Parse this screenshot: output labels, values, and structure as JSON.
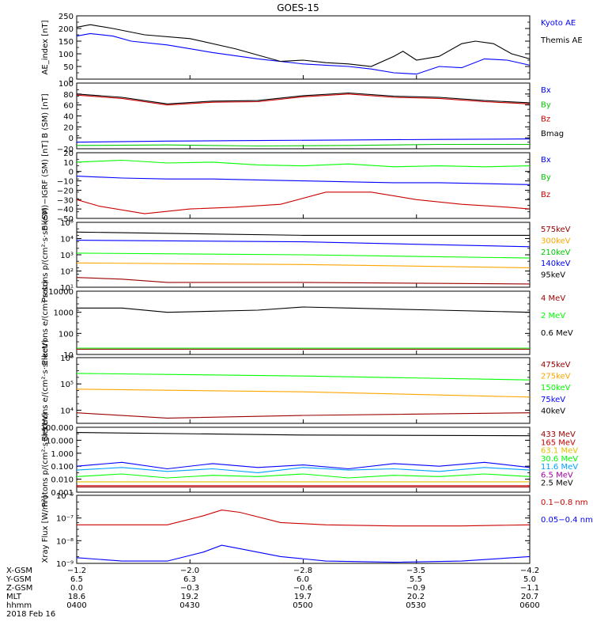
{
  "title": "GOES-15",
  "colors": {
    "black": "#000000",
    "blue": "#0000ff",
    "green": "#00cc00",
    "red": "#cc0000",
    "orange": "#ffa500",
    "cyan": "#00a0ff",
    "darkred": "#990000",
    "gold": "#e0c000",
    "purple": "#a000a0",
    "brightgreen": "#00ff00"
  },
  "chart_data": [
    {
      "type": "line",
      "ylabel": "AE_index [nT]",
      "ylim": [
        0,
        250
      ],
      "yscale": "linear",
      "yticks": [
        "250",
        "200",
        "150",
        "100",
        "50",
        "0"
      ],
      "ytick_values": [
        250,
        200,
        150,
        100,
        50,
        0
      ],
      "legend": [
        {
          "label": "Kyoto AE",
          "color": "blue"
        },
        {
          "label": "Themis AE",
          "color": "black"
        }
      ],
      "series": [
        {
          "name": "Kyoto AE",
          "color": "blue",
          "x": [
            0,
            0.03,
            0.08,
            0.12,
            0.2,
            0.3,
            0.4,
            0.5,
            0.55,
            0.6,
            0.65,
            0.7,
            0.75,
            0.8,
            0.85,
            0.9,
            0.95,
            1.0
          ],
          "y": [
            170,
            180,
            170,
            150,
            135,
            105,
            80,
            60,
            55,
            50,
            40,
            25,
            20,
            50,
            45,
            80,
            75,
            55
          ]
        },
        {
          "name": "Themis AE",
          "color": "black",
          "x": [
            0,
            0.03,
            0.08,
            0.15,
            0.25,
            0.35,
            0.45,
            0.5,
            0.55,
            0.6,
            0.65,
            0.7,
            0.72,
            0.75,
            0.8,
            0.85,
            0.88,
            0.92,
            0.96,
            1.0
          ],
          "y": [
            205,
            215,
            200,
            175,
            160,
            120,
            70,
            75,
            65,
            60,
            50,
            90,
            110,
            75,
            90,
            140,
            150,
            140,
            100,
            80
          ]
        }
      ]
    },
    {
      "type": "line",
      "ylabel": "B (SM) [nT]",
      "ylim": [
        -20,
        100
      ],
      "yscale": "linear",
      "yticks": [
        "100",
        "80",
        "60",
        "40",
        "20",
        "0",
        "−20"
      ],
      "ytick_values": [
        100,
        80,
        60,
        40,
        20,
        0,
        -20
      ],
      "legend": [
        {
          "label": "Bx",
          "color": "blue"
        },
        {
          "label": "By",
          "color": "green"
        },
        {
          "label": "Bz",
          "color": "red"
        },
        {
          "label": "Bmag",
          "color": "black"
        }
      ],
      "series": [
        {
          "name": "Bz",
          "color": "red",
          "x": [
            0,
            0.1,
            0.2,
            0.3,
            0.4,
            0.5,
            0.6,
            0.7,
            0.8,
            0.9,
            1.0
          ],
          "y": [
            78,
            72,
            60,
            65,
            66,
            75,
            80,
            74,
            72,
            66,
            62
          ]
        },
        {
          "name": "Bmag",
          "color": "black",
          "x": [
            0,
            0.1,
            0.2,
            0.3,
            0.4,
            0.5,
            0.6,
            0.7,
            0.8,
            0.9,
            1.0
          ],
          "y": [
            80,
            74,
            62,
            67,
            68,
            77,
            82,
            76,
            74,
            68,
            64
          ]
        },
        {
          "name": "Bx",
          "color": "blue",
          "x": [
            0,
            0.2,
            0.4,
            0.6,
            0.8,
            1.0
          ],
          "y": [
            -8,
            -6,
            -5,
            -4,
            -3,
            -2
          ]
        },
        {
          "name": "By",
          "color": "green",
          "x": [
            0,
            0.2,
            0.4,
            0.6,
            0.8,
            1.0
          ],
          "y": [
            -14,
            -13,
            -15,
            -14,
            -12,
            -12
          ]
        }
      ]
    },
    {
      "type": "line",
      "ylabel": "B (SM)−IGRF (SM) [nT]",
      "ylim": [
        -50,
        20
      ],
      "yscale": "linear",
      "yticks": [
        "20",
        "10",
        "0",
        "−10",
        "−20",
        "−30",
        "−40",
        "−50"
      ],
      "ytick_values": [
        20,
        10,
        0,
        -10,
        -20,
        -30,
        -40,
        -50
      ],
      "legend": [
        {
          "label": "Bx",
          "color": "blue"
        },
        {
          "label": "By",
          "color": "green"
        },
        {
          "label": "Bz",
          "color": "red"
        }
      ],
      "series": [
        {
          "name": "By",
          "color": "brightgreen",
          "x": [
            0,
            0.1,
            0.2,
            0.3,
            0.4,
            0.5,
            0.6,
            0.7,
            0.8,
            0.9,
            1.0
          ],
          "y": [
            10,
            12,
            9,
            10,
            7,
            6,
            8,
            5,
            6,
            5,
            6
          ]
        },
        {
          "name": "Bx",
          "color": "blue",
          "x": [
            0,
            0.1,
            0.2,
            0.3,
            0.4,
            0.5,
            0.6,
            0.7,
            0.8,
            0.9,
            1.0
          ],
          "y": [
            -5,
            -7,
            -8,
            -8,
            -9,
            -10,
            -11,
            -12,
            -12,
            -13,
            -14
          ]
        },
        {
          "name": "Bz",
          "color": "red",
          "x": [
            0,
            0.05,
            0.15,
            0.25,
            0.35,
            0.45,
            0.55,
            0.65,
            0.75,
            0.85,
            0.95,
            1.0
          ],
          "y": [
            -30,
            -37,
            -45,
            -40,
            -38,
            -35,
            -22,
            -22,
            -30,
            -35,
            -38,
            -40
          ]
        }
      ]
    },
    {
      "type": "line",
      "ylabel": "Protons p/(cm²·s·sr·keV)",
      "ylim": [
        1,
        5
      ],
      "yscale": "log",
      "yticks": [
        "10⁵",
        "10⁴",
        "10³",
        "10²",
        "10¹"
      ],
      "ytick_values": [
        5,
        4,
        3,
        2,
        1
      ],
      "legend": [
        {
          "label": "575keV",
          "color": "darkred"
        },
        {
          "label": "300keV",
          "color": "orange"
        },
        {
          "label": "210keV",
          "color": "green"
        },
        {
          "label": "140keV",
          "color": "blue"
        },
        {
          "label": "95keV",
          "color": "black"
        }
      ],
      "series": [
        {
          "name": "95keV",
          "color": "black",
          "x": [
            0,
            0.5,
            1.0
          ],
          "y": [
            4.4,
            4.2,
            4.2
          ]
        },
        {
          "name": "140keV",
          "color": "blue",
          "x": [
            0,
            0.5,
            1.0
          ],
          "y": [
            3.9,
            3.8,
            3.5
          ]
        },
        {
          "name": "210keV",
          "color": "brightgreen",
          "x": [
            0,
            0.5,
            1.0
          ],
          "y": [
            3.1,
            3.0,
            2.8
          ]
        },
        {
          "name": "300keV",
          "color": "orange",
          "x": [
            0,
            0.5,
            1.0
          ],
          "y": [
            2.5,
            2.4,
            2.2
          ]
        },
        {
          "name": "575keV",
          "color": "darkred",
          "x": [
            0,
            0.1,
            0.2,
            0.5,
            1.0
          ],
          "y": [
            1.6,
            1.5,
            1.3,
            1.3,
            1.2
          ]
        }
      ]
    },
    {
      "type": "line",
      "ylabel": "Electrons e/(cm²·s·sr)",
      "ylim": [
        1,
        4
      ],
      "yscale": "log",
      "yticks": [
        "10000",
        "1000",
        "100",
        "10"
      ],
      "ytick_values": [
        4,
        3,
        2,
        1
      ],
      "legend": [
        {
          "label": "4 MeV",
          "color": "darkred"
        },
        {
          "label": "2 MeV",
          "color": "brightgreen"
        },
        {
          "label": "0.6 MeV",
          "color": "black"
        }
      ],
      "series": [
        {
          "name": "0.6 MeV",
          "color": "black",
          "x": [
            0,
            0.1,
            0.2,
            0.3,
            0.4,
            0.5,
            0.6,
            0.7,
            0.8,
            0.9,
            1.0
          ],
          "y": [
            3.2,
            3.2,
            3.0,
            3.05,
            3.1,
            3.25,
            3.2,
            3.15,
            3.1,
            3.05,
            3.0
          ]
        },
        {
          "name": "2 MeV",
          "color": "brightgreen",
          "x": [
            0,
            1.0
          ],
          "y": [
            1.3,
            1.3
          ]
        },
        {
          "name": "4 MeV",
          "color": "darkred",
          "x": [
            0,
            1.0
          ],
          "y": [
            1.25,
            1.25
          ]
        }
      ]
    },
    {
      "type": "line",
      "ylabel": "Electrons e/(cm²·s·sr·keV)",
      "ylim": [
        3.5,
        6
      ],
      "yscale": "log",
      "yticks": [
        "10⁶",
        "10⁵",
        "10⁴"
      ],
      "ytick_values": [
        6,
        5,
        4
      ],
      "legend": [
        {
          "label": "475keV",
          "color": "darkred"
        },
        {
          "label": "275keV",
          "color": "orange"
        },
        {
          "label": "150keV",
          "color": "brightgreen"
        },
        {
          "label": "75keV",
          "color": "blue"
        },
        {
          "label": "40keV",
          "color": "black"
        }
      ],
      "series": [
        {
          "name": "150keV",
          "color": "brightgreen",
          "x": [
            0,
            0.5,
            1.0
          ],
          "y": [
            5.4,
            5.3,
            5.15
          ]
        },
        {
          "name": "275keV",
          "color": "orange",
          "x": [
            0,
            0.5,
            1.0
          ],
          "y": [
            4.8,
            4.7,
            4.5
          ]
        },
        {
          "name": "475keV",
          "color": "darkred",
          "x": [
            0,
            0.2,
            0.5,
            1.0
          ],
          "y": [
            3.9,
            3.7,
            3.8,
            3.9
          ]
        }
      ]
    },
    {
      "type": "line",
      "ylabel": "Protons p/(cm²·s·sr·keV)",
      "ylim": [
        -3,
        2
      ],
      "yscale": "log",
      "yticks": [
        "100.000",
        "10.000",
        "1.000",
        "0.100",
        "0.010",
        "0.001"
      ],
      "ytick_values": [
        2,
        1,
        0,
        -1,
        -2,
        -3
      ],
      "legend": [
        {
          "label": "433 MeV",
          "color": "darkred"
        },
        {
          "label": "165 MeV",
          "color": "red"
        },
        {
          "label": "63.1 MeV",
          "color": "gold"
        },
        {
          "label": "30.6 MeV",
          "color": "brightgreen"
        },
        {
          "label": "11.6 MeV",
          "color": "cyan"
        },
        {
          "label": "6.5 MeV",
          "color": "purple"
        },
        {
          "label": "2.5 MeV",
          "color": "black"
        }
      ],
      "series": [
        {
          "name": "2.5 MeV",
          "color": "black",
          "x": [
            0,
            0.5,
            1.0
          ],
          "y": [
            1.6,
            1.4,
            1.35
          ]
        },
        {
          "name": "6.5 MeV",
          "color": "blue",
          "x": [
            0,
            0.1,
            0.2,
            0.3,
            0.4,
            0.5,
            0.6,
            0.7,
            0.8,
            0.9,
            1.0
          ],
          "y": [
            -1,
            -0.7,
            -1.2,
            -0.8,
            -1.1,
            -0.9,
            -1.2,
            -0.8,
            -1.0,
            -0.7,
            -1.1
          ]
        },
        {
          "name": "11.6 MeV",
          "color": "cyan",
          "x": [
            0,
            0.1,
            0.2,
            0.3,
            0.4,
            0.5,
            0.6,
            0.7,
            0.8,
            0.9,
            1.0
          ],
          "y": [
            -1.3,
            -1.1,
            -1.4,
            -1.2,
            -1.5,
            -1.1,
            -1.3,
            -1.2,
            -1.4,
            -1.1,
            -1.3
          ]
        },
        {
          "name": "30.6 MeV",
          "color": "brightgreen",
          "x": [
            0,
            0.1,
            0.2,
            0.3,
            0.4,
            0.5,
            0.6,
            0.7,
            0.8,
            0.9,
            1.0
          ],
          "y": [
            -1.8,
            -1.6,
            -1.9,
            -1.7,
            -1.8,
            -1.6,
            -1.9,
            -1.7,
            -1.8,
            -1.6,
            -1.8
          ]
        },
        {
          "name": "63.1 MeV",
          "color": "gold",
          "x": [
            0,
            1.0
          ],
          "y": [
            -2.2,
            -2.2
          ]
        },
        {
          "name": "165 MeV",
          "color": "red",
          "x": [
            0,
            1.0
          ],
          "y": [
            -2.5,
            -2.5
          ]
        },
        {
          "name": "433 MeV",
          "color": "darkred",
          "x": [
            0,
            1.0
          ],
          "y": [
            -2.6,
            -2.6
          ]
        }
      ]
    },
    {
      "type": "line",
      "ylabel": "Xray Flux [W/m²]",
      "ylim": [
        -9,
        -6
      ],
      "yscale": "log",
      "yticks": [
        "10⁻⁶",
        "10⁻⁷",
        "10⁻⁸",
        "10⁻⁹"
      ],
      "ytick_values": [
        -6,
        -7,
        -8,
        -9
      ],
      "legend": [
        {
          "label": "0.1−0.8 nm",
          "color": "red"
        },
        {
          "label": "0.05−0.4 nm",
          "color": "blue"
        }
      ],
      "series": [
        {
          "name": "0.1−0.8 nm",
          "color": "red",
          "x": [
            0,
            0.2,
            0.28,
            0.32,
            0.36,
            0.45,
            0.55,
            0.7,
            0.85,
            1.0
          ],
          "y": [
            -7.3,
            -7.3,
            -6.9,
            -6.65,
            -6.75,
            -7.2,
            -7.3,
            -7.35,
            -7.35,
            -7.3
          ]
        },
        {
          "name": "0.05−0.4 nm",
          "color": "blue",
          "x": [
            0,
            0.1,
            0.2,
            0.28,
            0.32,
            0.36,
            0.45,
            0.55,
            0.7,
            0.85,
            1.0
          ],
          "y": [
            -8.75,
            -8.9,
            -8.9,
            -8.5,
            -8.2,
            -8.35,
            -8.7,
            -8.9,
            -8.95,
            -8.9,
            -8.7
          ]
        }
      ]
    }
  ],
  "footer": {
    "rows": [
      {
        "label": "X-GSM",
        "values": [
          "−1.2",
          "−2.0",
          "−2.8",
          "−3.5",
          "−4.2"
        ]
      },
      {
        "label": "Y-GSM",
        "values": [
          "6.5",
          "6.3",
          "6.0",
          "5.5",
          "5.0"
        ]
      },
      {
        "label": "Z-GSM",
        "values": [
          "0.0",
          "−0.3",
          "−0.6",
          "−0.9",
          "−1.1"
        ]
      },
      {
        "label": "MLT",
        "values": [
          "18.6",
          "19.2",
          "19.7",
          "20.2",
          "20.7"
        ]
      },
      {
        "label": "hhmm",
        "values": [
          "0400",
          "0430",
          "0500",
          "0530",
          "0600"
        ]
      }
    ],
    "date": "2018 Feb 16"
  }
}
